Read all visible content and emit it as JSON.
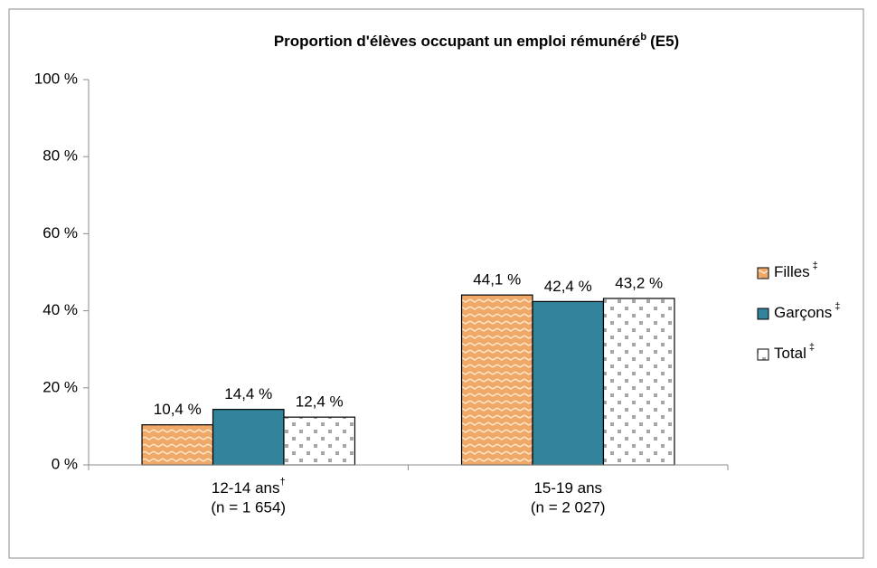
{
  "chart_data": {
    "type": "bar",
    "title": "Proportion d'élèves occupant un emploi rémunéré",
    "title_superscript": "b",
    "title_suffix": "(E5)",
    "categories": [
      "12-14 ans",
      "15-19 ans"
    ],
    "category_superscripts": [
      "†",
      null
    ],
    "category_sublabels": [
      "(n = 1 654)",
      "(n = 2 027)"
    ],
    "series": [
      {
        "name": "Filles",
        "superscript": "‡",
        "color": "#f0a868",
        "pattern": "zigzag",
        "values": [
          10.4,
          44.1
        ],
        "value_labels": [
          "10,4 %",
          "44,1 %"
        ]
      },
      {
        "name": "Garçons",
        "superscript": "‡",
        "color": "#31849b",
        "pattern": "solid",
        "values": [
          14.4,
          42.4
        ],
        "value_labels": [
          "14,4 %",
          "42,4 %"
        ]
      },
      {
        "name": "Total",
        "superscript": "‡",
        "color": "#a6a6a6",
        "pattern": "dots",
        "values": [
          12.4,
          43.2
        ],
        "value_labels": [
          "12,4 %",
          "43,2 %"
        ]
      }
    ],
    "ylim": [
      0,
      100
    ],
    "yticks": [
      {
        "value": 0,
        "label": "0 %"
      },
      {
        "value": 20,
        "label": "20 %"
      },
      {
        "value": 40,
        "label": "40 %"
      },
      {
        "value": 60,
        "label": "60 %"
      },
      {
        "value": 80,
        "label": "80 %"
      },
      {
        "value": 100,
        "label": "100 %"
      }
    ],
    "grid": false,
    "legend": "right"
  }
}
